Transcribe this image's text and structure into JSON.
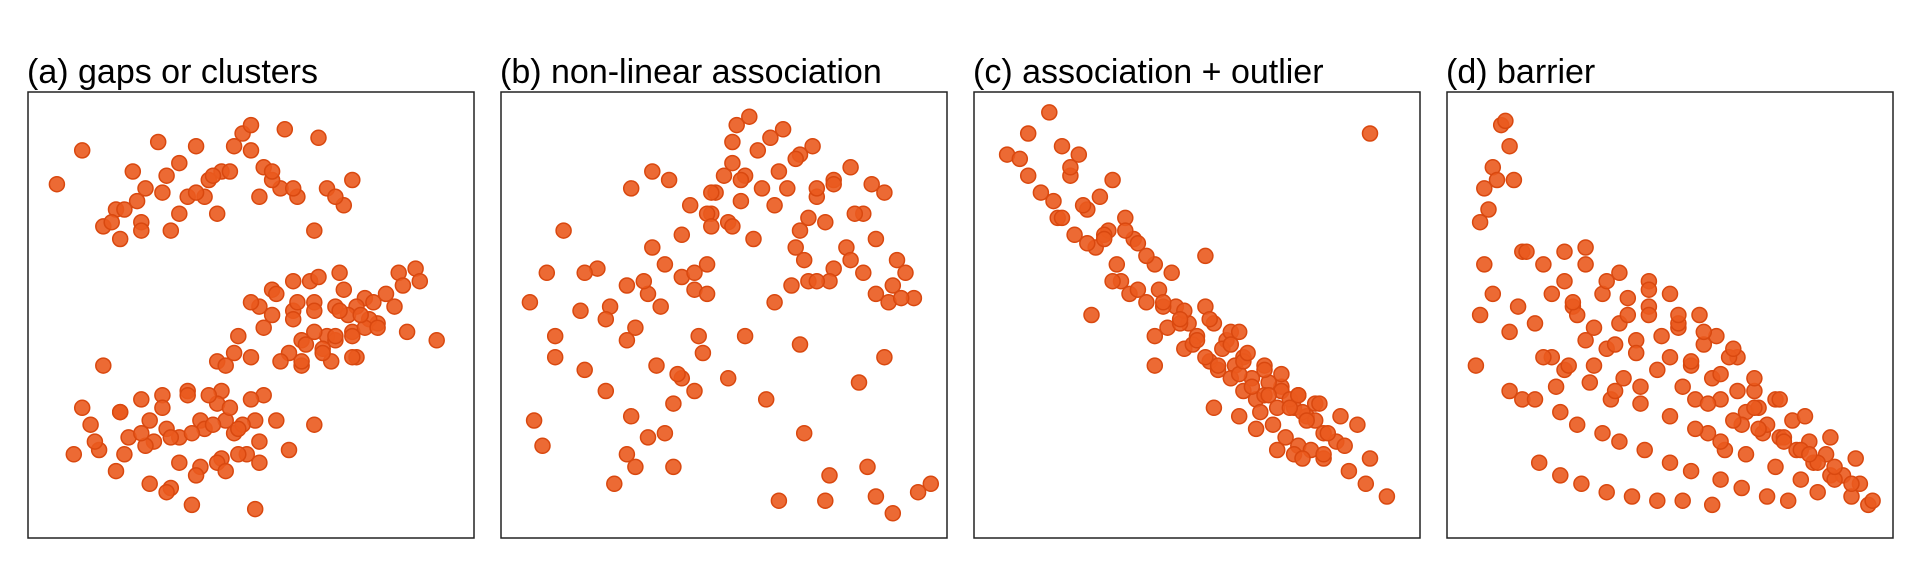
{
  "colors": {
    "point_fill": "#ea5a1e",
    "point_stroke": "#d9480f",
    "frame": "#222222",
    "background": "#ffffff"
  },
  "chart_data": [
    {
      "type": "scatter",
      "title": "(a) gaps or clusters",
      "xlabel": "",
      "ylabel": "",
      "xlim": [
        0,
        1
      ],
      "ylim": [
        0,
        1
      ],
      "grid": false,
      "legend": "none",
      "x": [
        0.04,
        0.1,
        0.18,
        0.29,
        0.4,
        0.48,
        0.53,
        0.22,
        0.28,
        0.33,
        0.37,
        0.43,
        0.5,
        0.57,
        0.23,
        0.3,
        0.39,
        0.46,
        0.55,
        0.61,
        0.68,
        0.72,
        0.15,
        0.2,
        0.25,
        0.35,
        0.42,
        0.52,
        0.6,
        0.7,
        0.19,
        0.24,
        0.31,
        0.37,
        0.45,
        0.55,
        0.65,
        0.74,
        0.17,
        0.24,
        0.33,
        0.41,
        0.5,
        0.58,
        0.66,
        0.55,
        0.64,
        0.71,
        0.52,
        0.6,
        0.66,
        0.72,
        0.77,
        0.85,
        0.89,
        0.75,
        0.79,
        0.82,
        0.86,
        0.9,
        0.62,
        0.68,
        0.74,
        0.8,
        0.47,
        0.55,
        0.6,
        0.65,
        0.7,
        0.73,
        0.78,
        0.84,
        0.94,
        0.59,
        0.63,
        0.67,
        0.7,
        0.74,
        0.77,
        0.62,
        0.69,
        0.75,
        0.42,
        0.46,
        0.5,
        0.56,
        0.61,
        0.65,
        0.71,
        0.76,
        0.8,
        0.87,
        0.44,
        0.5,
        0.57,
        0.62,
        0.67,
        0.74,
        0.53,
        0.6,
        0.65,
        0.7,
        0.15,
        0.24,
        0.29,
        0.35,
        0.43,
        0.53,
        0.12,
        0.19,
        0.26,
        0.3,
        0.38,
        0.42,
        0.46,
        0.51,
        0.14,
        0.21,
        0.27,
        0.33,
        0.39,
        0.44,
        0.48,
        0.56,
        0.65,
        0.08,
        0.13,
        0.2,
        0.25,
        0.31,
        0.36,
        0.41,
        0.47,
        0.52,
        0.1,
        0.19,
        0.24,
        0.29,
        0.35,
        0.4,
        0.45,
        0.5,
        0.59,
        0.18,
        0.26,
        0.33,
        0.38,
        0.43,
        0.49,
        0.31,
        0.37,
        0.42,
        0.47,
        0.52,
        0.3,
        0.36,
        0.44,
        0.51
      ],
      "y": [
        0.81,
        0.89,
        0.75,
        0.79,
        0.82,
        0.93,
        0.85,
        0.84,
        0.91,
        0.86,
        0.9,
        0.84,
        0.89,
        0.8,
        0.77,
        0.83,
        0.78,
        0.9,
        0.82,
        0.78,
        0.8,
        0.76,
        0.71,
        0.75,
        0.8,
        0.78,
        0.74,
        0.78,
        0.8,
        0.78,
        0.68,
        0.72,
        0.7,
        0.79,
        0.84,
        0.84,
        0.7,
        0.82,
        0.72,
        0.7,
        0.74,
        0.83,
        0.95,
        0.94,
        0.92,
        0.56,
        0.58,
        0.6,
        0.52,
        0.58,
        0.59,
        0.56,
        0.54,
        0.6,
        0.61,
        0.52,
        0.53,
        0.55,
        0.57,
        0.58,
        0.44,
        0.45,
        0.46,
        0.48,
        0.45,
        0.5,
        0.51,
        0.53,
        0.52,
        0.5,
        0.49,
        0.52,
        0.44,
        0.41,
        0.43,
        0.42,
        0.44,
        0.45,
        0.47,
        0.38,
        0.39,
        0.4,
        0.39,
        0.41,
        0.53,
        0.55,
        0.53,
        0.51,
        0.51,
        0.5,
        0.47,
        0.46,
        0.38,
        0.4,
        0.39,
        0.39,
        0.41,
        0.4,
        0.47,
        0.49,
        0.46,
        0.45,
        0.38,
        0.3,
        0.31,
        0.32,
        0.32,
        0.31,
        0.24,
        0.27,
        0.25,
        0.23,
        0.25,
        0.29,
        0.22,
        0.25,
        0.18,
        0.21,
        0.2,
        0.21,
        0.23,
        0.25,
        0.24,
        0.25,
        0.24,
        0.17,
        0.2,
        0.17,
        0.19,
        0.21,
        0.22,
        0.24,
        0.23,
        0.2,
        0.28,
        0.27,
        0.22,
        0.28,
        0.31,
        0.31,
        0.28,
        0.3,
        0.18,
        0.13,
        0.1,
        0.15,
        0.14,
        0.16,
        0.17,
        0.09,
        0.12,
        0.15,
        0.17,
        0.15,
        0.08,
        0.05,
        0.13,
        0.04
      ]
    },
    {
      "type": "scatter",
      "title": "(b) non-linear association",
      "xlabel": "",
      "ylabel": "",
      "xlim": [
        0,
        1
      ],
      "ylim": [
        0,
        1
      ],
      "grid": false,
      "legend": "none",
      "x": [
        0.05,
        0.07,
        0.12,
        0.16,
        0.1,
        0.08,
        0.04,
        0.17,
        0.22,
        0.28,
        0.27,
        0.32,
        0.24,
        0.29,
        0.38,
        0.43,
        0.44,
        0.4,
        0.36,
        0.38,
        0.47,
        0.48,
        0.5,
        0.52,
        0.55,
        0.58,
        0.52,
        0.53,
        0.56,
        0.61,
        0.64,
        0.68,
        0.71,
        0.76,
        0.8,
        0.85,
        0.46,
        0.51,
        0.54,
        0.59,
        0.63,
        0.67,
        0.72,
        0.76,
        0.83,
        0.88,
        0.33,
        0.4,
        0.47,
        0.52,
        0.57,
        0.62,
        0.68,
        0.74,
        0.79,
        0.86,
        0.91,
        0.93,
        0.95,
        0.8,
        0.66,
        0.7,
        0.76,
        0.83,
        0.9,
        0.2,
        0.27,
        0.32,
        0.35,
        0.4,
        0.43,
        0.46,
        0.55,
        0.62,
        0.69,
        0.75,
        0.86,
        0.89,
        0.1,
        0.17,
        0.23,
        0.27,
        0.31,
        0.36,
        0.22,
        0.29,
        0.45,
        0.51,
        0.39,
        0.43,
        0.34,
        0.46,
        0.6,
        0.69,
        0.75,
        0.84,
        0.86,
        0.9,
        0.96,
        0.99,
        0.28,
        0.33,
        0.37,
        0.42,
        0.47,
        0.54,
        0.65,
        0.72,
        0.81,
        0.92,
        0.63,
        0.74,
        0.82,
        0.88,
        0.67,
        0.7,
        0.72,
        0.68
      ],
      "y": [
        0.25,
        0.19,
        0.7,
        0.51,
        0.45,
        0.6,
        0.53,
        0.37,
        0.32,
        0.26,
        0.17,
        0.21,
        0.1,
        0.14,
        0.14,
        0.32,
        0.45,
        0.35,
        0.22,
        0.29,
        0.74,
        0.79,
        0.83,
        0.86,
        0.83,
        0.89,
        0.91,
        0.95,
        0.97,
        0.92,
        0.94,
        0.88,
        0.9,
        0.82,
        0.85,
        0.81,
        0.74,
        0.72,
        0.77,
        0.8,
        0.84,
        0.87,
        0.78,
        0.81,
        0.74,
        0.79,
        0.66,
        0.69,
        0.71,
        0.71,
        0.68,
        0.76,
        0.7,
        0.72,
        0.66,
        0.68,
        0.63,
        0.6,
        0.54,
        0.63,
        0.57,
        0.58,
        0.61,
        0.6,
        0.57,
        0.61,
        0.57,
        0.55,
        0.52,
        0.59,
        0.6,
        0.62,
        0.45,
        0.53,
        0.63,
        0.58,
        0.55,
        0.53,
        0.4,
        0.6,
        0.52,
        0.44,
        0.58,
        0.62,
        0.49,
        0.47,
        0.41,
        0.35,
        0.36,
        0.56,
        0.38,
        0.55,
        0.3,
        0.22,
        0.12,
        0.14,
        0.07,
        0.03,
        0.08,
        0.1,
        0.8,
        0.84,
        0.82,
        0.76,
        0.79,
        0.82,
        0.8,
        0.8,
        0.74,
        0.54,
        0.06,
        0.06,
        0.34,
        0.4,
        0.66,
        0.73,
        0.58,
        0.43
      ]
    },
    {
      "type": "scatter",
      "title": "(c) association + outlier",
      "xlabel": "",
      "ylabel": "",
      "xlim": [
        0,
        1
      ],
      "ylim": [
        0,
        1
      ],
      "grid": false,
      "legend": "none",
      "x": [
        0.05,
        0.08,
        0.1,
        0.15,
        0.18,
        0.2,
        0.22,
        0.17,
        0.24,
        0.27,
        0.3,
        0.33,
        0.26,
        0.29,
        0.35,
        0.2,
        0.23,
        0.28,
        0.31,
        0.36,
        0.4,
        0.44,
        0.32,
        0.34,
        0.38,
        0.41,
        0.45,
        0.48,
        0.52,
        0.4,
        0.43,
        0.47,
        0.5,
        0.54,
        0.57,
        0.61,
        0.42,
        0.46,
        0.49,
        0.53,
        0.56,
        0.59,
        0.63,
        0.66,
        0.7,
        0.5,
        0.52,
        0.55,
        0.58,
        0.61,
        0.64,
        0.67,
        0.7,
        0.73,
        0.76,
        0.55,
        0.6,
        0.63,
        0.66,
        0.69,
        0.72,
        0.75,
        0.78,
        0.8,
        0.83,
        0.65,
        0.68,
        0.71,
        0.74,
        0.77,
        0.8,
        0.86,
        0.9,
        0.95,
        0.1,
        0.13,
        0.16,
        0.18,
        0.21,
        0.24,
        0.28,
        0.33,
        0.38,
        0.25,
        0.3,
        0.36,
        0.42,
        0.47,
        0.53,
        0.58,
        0.61,
        0.66,
        0.7,
        0.74,
        0.78,
        0.62,
        0.67,
        0.72,
        0.76,
        0.81,
        0.85,
        0.6,
        0.64,
        0.69,
        0.73,
        0.91,
        0.74,
        0.79,
        0.84,
        0.88,
        0.75,
        0.8,
        0.54,
        0.6,
        0.46,
        0.52,
        0.58,
        0.4
      ],
      "y": [
        0.88,
        0.87,
        0.93,
        0.98,
        0.9,
        0.83,
        0.88,
        0.73,
        0.75,
        0.78,
        0.82,
        0.73,
        0.66,
        0.7,
        0.68,
        0.85,
        0.76,
        0.69,
        0.62,
        0.67,
        0.62,
        0.6,
        0.58,
        0.55,
        0.53,
        0.56,
        0.52,
        0.48,
        0.52,
        0.45,
        0.47,
        0.42,
        0.45,
        0.48,
        0.44,
        0.4,
        0.52,
        0.48,
        0.43,
        0.39,
        0.42,
        0.38,
        0.35,
        0.38,
        0.33,
        0.44,
        0.4,
        0.37,
        0.35,
        0.32,
        0.3,
        0.34,
        0.32,
        0.28,
        0.26,
        0.38,
        0.36,
        0.33,
        0.31,
        0.28,
        0.3,
        0.27,
        0.25,
        0.22,
        0.2,
        0.27,
        0.24,
        0.21,
        0.19,
        0.18,
        0.16,
        0.13,
        0.1,
        0.07,
        0.83,
        0.79,
        0.77,
        0.73,
        0.69,
        0.67,
        0.68,
        0.7,
        0.64,
        0.5,
        0.58,
        0.56,
        0.53,
        0.51,
        0.49,
        0.46,
        0.39,
        0.37,
        0.36,
        0.31,
        0.29,
        0.41,
        0.31,
        0.28,
        0.25,
        0.22,
        0.19,
        0.26,
        0.23,
        0.18,
        0.17,
        0.16,
        0.31,
        0.29,
        0.26,
        0.24,
        0.16,
        0.17,
        0.28,
        0.46,
        0.49,
        0.64,
        0.43,
        0.38
      ],
      "outlier": {
        "x": 0.91,
        "y": 0.93
      }
    },
    {
      "type": "scatter",
      "title": "(d) barrier",
      "xlabel": "",
      "ylabel": "",
      "xlim": [
        0,
        1
      ],
      "ylim": [
        0,
        1
      ],
      "grid": false,
      "legend": "none",
      "x": [
        0.1,
        0.11,
        0.12,
        0.08,
        0.06,
        0.07,
        0.09,
        0.13,
        0.15,
        0.05,
        0.06,
        0.08,
        0.05,
        0.04,
        0.12,
        0.14,
        0.12,
        0.16,
        0.25,
        0.2,
        0.18,
        0.22,
        0.15,
        0.23,
        0.27,
        0.3,
        0.25,
        0.28,
        0.35,
        0.34,
        0.38,
        0.32,
        0.4,
        0.36,
        0.42,
        0.45,
        0.39,
        0.45,
        0.5,
        0.48,
        0.43,
        0.52,
        0.55,
        0.5,
        0.57,
        0.61,
        0.66,
        0.7,
        0.55,
        0.56,
        0.6,
        0.62,
        0.68,
        0.72,
        0.76,
        0.8,
        0.84,
        0.88,
        0.93,
        0.97,
        0.59,
        0.63,
        0.67,
        0.71,
        0.75,
        0.79,
        0.83,
        0.87,
        0.91,
        0.95,
        0.98,
        0.62,
        0.66,
        0.7,
        0.73,
        0.77,
        0.81,
        0.85,
        0.89,
        0.25,
        0.3,
        0.35,
        0.4,
        0.45,
        0.52,
        0.58,
        0.64,
        0.7,
        0.76,
        0.82,
        0.88,
        0.94,
        0.22,
        0.27,
        0.32,
        0.37,
        0.42,
        0.47,
        0.53,
        0.59,
        0.65,
        0.71,
        0.77,
        0.83,
        0.89,
        0.93,
        0.2,
        0.26,
        0.31,
        0.37,
        0.43,
        0.5,
        0.56,
        0.62,
        0.68,
        0.75,
        0.81,
        0.85,
        0.18,
        0.24,
        0.28,
        0.34,
        0.38,
        0.44,
        0.5,
        0.55,
        0.62,
        0.67,
        0.73,
        0.78,
        0.3,
        0.38,
        0.45,
        0.52,
        0.58,
        0.65,
        0.19,
        0.24,
        0.29,
        0.35,
        0.41,
        0.47,
        0.53,
        0.6
      ],
      "y": [
        0.95,
        0.96,
        0.9,
        0.85,
        0.8,
        0.75,
        0.82,
        0.82,
        0.65,
        0.72,
        0.62,
        0.55,
        0.5,
        0.38,
        0.32,
        0.52,
        0.46,
        0.65,
        0.58,
        0.62,
        0.48,
        0.4,
        0.3,
        0.33,
        0.52,
        0.44,
        0.37,
        0.5,
        0.42,
        0.55,
        0.48,
        0.38,
        0.5,
        0.3,
        0.44,
        0.58,
        0.35,
        0.52,
        0.4,
        0.45,
        0.33,
        0.47,
        0.38,
        0.55,
        0.5,
        0.45,
        0.4,
        0.32,
        0.39,
        0.3,
        0.35,
        0.3,
        0.27,
        0.22,
        0.21,
        0.18,
        0.15,
        0.12,
        0.07,
        0.05,
        0.22,
        0.18,
        0.24,
        0.28,
        0.3,
        0.25,
        0.2,
        0.17,
        0.12,
        0.1,
        0.06,
        0.36,
        0.32,
        0.28,
        0.24,
        0.21,
        0.18,
        0.15,
        0.11,
        0.65,
        0.62,
        0.58,
        0.54,
        0.5,
        0.48,
        0.43,
        0.4,
        0.35,
        0.3,
        0.26,
        0.21,
        0.16,
        0.55,
        0.53,
        0.47,
        0.43,
        0.41,
        0.37,
        0.33,
        0.29,
        0.25,
        0.23,
        0.2,
        0.17,
        0.14,
        0.1,
        0.4,
        0.38,
        0.34,
        0.32,
        0.29,
        0.26,
        0.23,
        0.2,
        0.17,
        0.14,
        0.11,
        0.08,
        0.3,
        0.27,
        0.24,
        0.22,
        0.2,
        0.18,
        0.15,
        0.13,
        0.11,
        0.09,
        0.07,
        0.06,
        0.66,
        0.6,
        0.56,
        0.5,
        0.46,
        0.42,
        0.15,
        0.12,
        0.1,
        0.08,
        0.07,
        0.06,
        0.06,
        0.05
      ]
    }
  ]
}
